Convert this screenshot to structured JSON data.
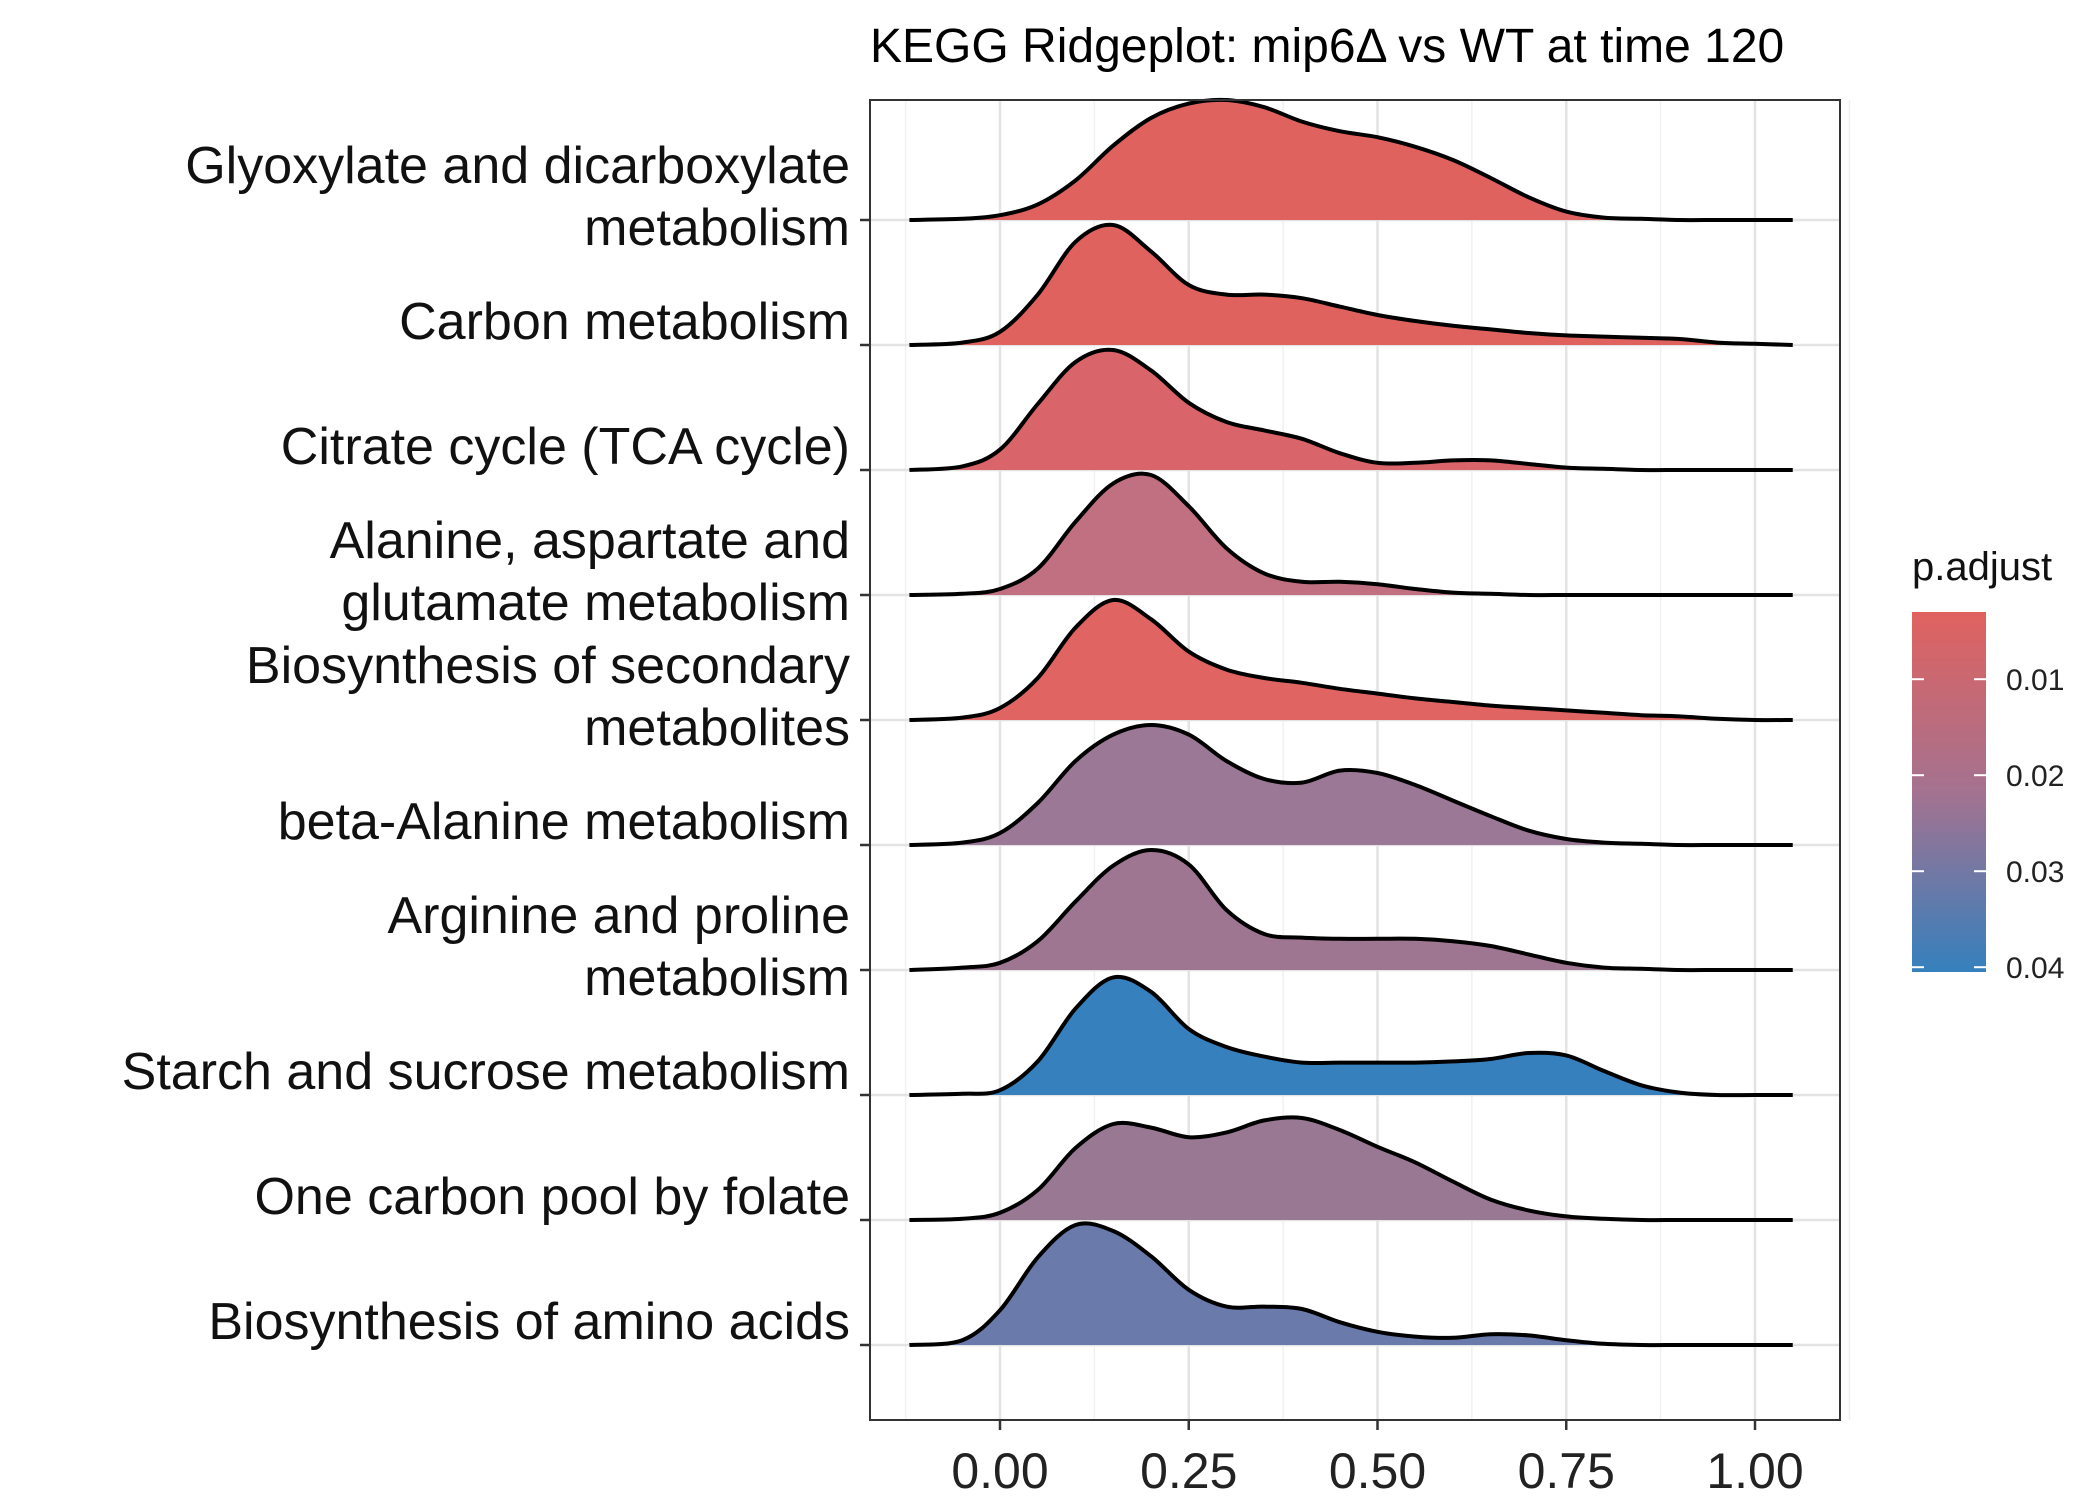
{
  "chart_data": {
    "type": "ridgeline",
    "title": "KEGG Ridgeplot: mip6Δ vs WT at time 120",
    "xlabel": "",
    "ylabel": "",
    "xlim": [
      -0.17,
      1.11
    ],
    "x_ticks": [
      0.0,
      0.25,
      0.5,
      0.75,
      1.0
    ],
    "x_tick_labels": [
      "0.00",
      "0.25",
      "0.50",
      "0.75",
      "1.00"
    ],
    "grid": true,
    "density_x": [
      -0.12,
      -0.05,
      0.0,
      0.05,
      0.1,
      0.15,
      0.2,
      0.25,
      0.3,
      0.35,
      0.4,
      0.45,
      0.5,
      0.55,
      0.6,
      0.65,
      0.7,
      0.75,
      0.8,
      0.85,
      0.9,
      0.95,
      1.0,
      1.05
    ],
    "series": [
      {
        "name": "Glyoxylate and dicarboxylate\nmetabolism",
        "p_adjust": 0.004,
        "color": "#e0625f",
        "density": [
          0,
          0.01,
          0.04,
          0.13,
          0.33,
          0.62,
          0.85,
          0.97,
          1.0,
          0.94,
          0.82,
          0.74,
          0.69,
          0.61,
          0.5,
          0.35,
          0.19,
          0.07,
          0.02,
          0.01,
          0,
          0,
          0,
          0
        ]
      },
      {
        "name": "Carbon metabolism",
        "p_adjust": 0.004,
        "color": "#e0625f",
        "density": [
          0,
          0.02,
          0.11,
          0.42,
          0.86,
          1.0,
          0.78,
          0.5,
          0.42,
          0.42,
          0.39,
          0.32,
          0.25,
          0.2,
          0.16,
          0.13,
          0.1,
          0.08,
          0.07,
          0.06,
          0.05,
          0.02,
          0.01,
          0
        ]
      },
      {
        "name": "Citrate cycle (TCA cycle)",
        "p_adjust": 0.007,
        "color": "#d9646a",
        "density": [
          0,
          0.03,
          0.17,
          0.55,
          0.9,
          1.0,
          0.83,
          0.56,
          0.4,
          0.33,
          0.26,
          0.14,
          0.06,
          0.06,
          0.08,
          0.08,
          0.05,
          0.02,
          0.01,
          0,
          0,
          0,
          0,
          0
        ]
      },
      {
        "name": "Alanine, aspartate and\nglutamate metabolism",
        "p_adjust": 0.012,
        "color": "#c07080",
        "density": [
          0,
          0.01,
          0.05,
          0.22,
          0.61,
          0.93,
          1.0,
          0.74,
          0.39,
          0.18,
          0.11,
          0.11,
          0.09,
          0.05,
          0.02,
          0.01,
          0,
          0,
          0,
          0,
          0,
          0,
          0,
          0
        ]
      },
      {
        "name": "Biosynthesis of secondary\nmetabolites",
        "p_adjust": 0.005,
        "color": "#df6462",
        "density": [
          0,
          0.02,
          0.1,
          0.35,
          0.77,
          1.0,
          0.84,
          0.57,
          0.42,
          0.35,
          0.31,
          0.26,
          0.22,
          0.18,
          0.15,
          0.12,
          0.1,
          0.08,
          0.06,
          0.04,
          0.03,
          0.01,
          0,
          0
        ]
      },
      {
        "name": "beta-Alanine metabolism",
        "p_adjust": 0.022,
        "color": "#9b7895",
        "density": [
          0,
          0.02,
          0.1,
          0.35,
          0.7,
          0.92,
          1.0,
          0.92,
          0.7,
          0.55,
          0.52,
          0.62,
          0.6,
          0.5,
          0.37,
          0.24,
          0.12,
          0.05,
          0.02,
          0.01,
          0,
          0,
          0,
          0
        ]
      },
      {
        "name": "Arginine and proline\nmetabolism",
        "p_adjust": 0.021,
        "color": "#9e7692",
        "density": [
          0,
          0.02,
          0.06,
          0.24,
          0.57,
          0.87,
          1.0,
          0.88,
          0.5,
          0.3,
          0.27,
          0.26,
          0.26,
          0.26,
          0.24,
          0.2,
          0.13,
          0.06,
          0.02,
          0.01,
          0,
          0,
          0,
          0
        ]
      },
      {
        "name": "Starch and sucrose metabolism",
        "p_adjust": 0.04,
        "color": "#3580bd",
        "density": [
          0,
          0.01,
          0.04,
          0.28,
          0.72,
          0.98,
          0.86,
          0.55,
          0.4,
          0.32,
          0.27,
          0.27,
          0.27,
          0.27,
          0.28,
          0.3,
          0.35,
          0.33,
          0.2,
          0.08,
          0.02,
          0,
          0,
          0
        ]
      },
      {
        "name": "One carbon pool by folate",
        "p_adjust": 0.022,
        "color": "#997893",
        "density": [
          0,
          0.01,
          0.06,
          0.25,
          0.6,
          0.8,
          0.77,
          0.69,
          0.73,
          0.83,
          0.85,
          0.75,
          0.61,
          0.48,
          0.32,
          0.17,
          0.08,
          0.03,
          0.01,
          0,
          0,
          0,
          0,
          0
        ]
      },
      {
        "name": "Biosynthesis of amino acids",
        "p_adjust": 0.03,
        "color": "#6a7aab",
        "density": [
          0,
          0.04,
          0.29,
          0.73,
          1.0,
          0.95,
          0.74,
          0.46,
          0.32,
          0.32,
          0.3,
          0.19,
          0.11,
          0.07,
          0.06,
          0.09,
          0.08,
          0.04,
          0.01,
          0,
          0,
          0,
          0,
          0
        ]
      }
    ],
    "legend": {
      "title": "p.adjust",
      "position": "right",
      "range": [
        0.003,
        0.0405
      ],
      "ticks": [
        0.01,
        0.02,
        0.03,
        0.04
      ],
      "tick_labels": [
        "0.01",
        "0.02",
        "0.03",
        "0.04"
      ],
      "color_low": "#e0625f",
      "color_high": "#3580bd"
    }
  }
}
